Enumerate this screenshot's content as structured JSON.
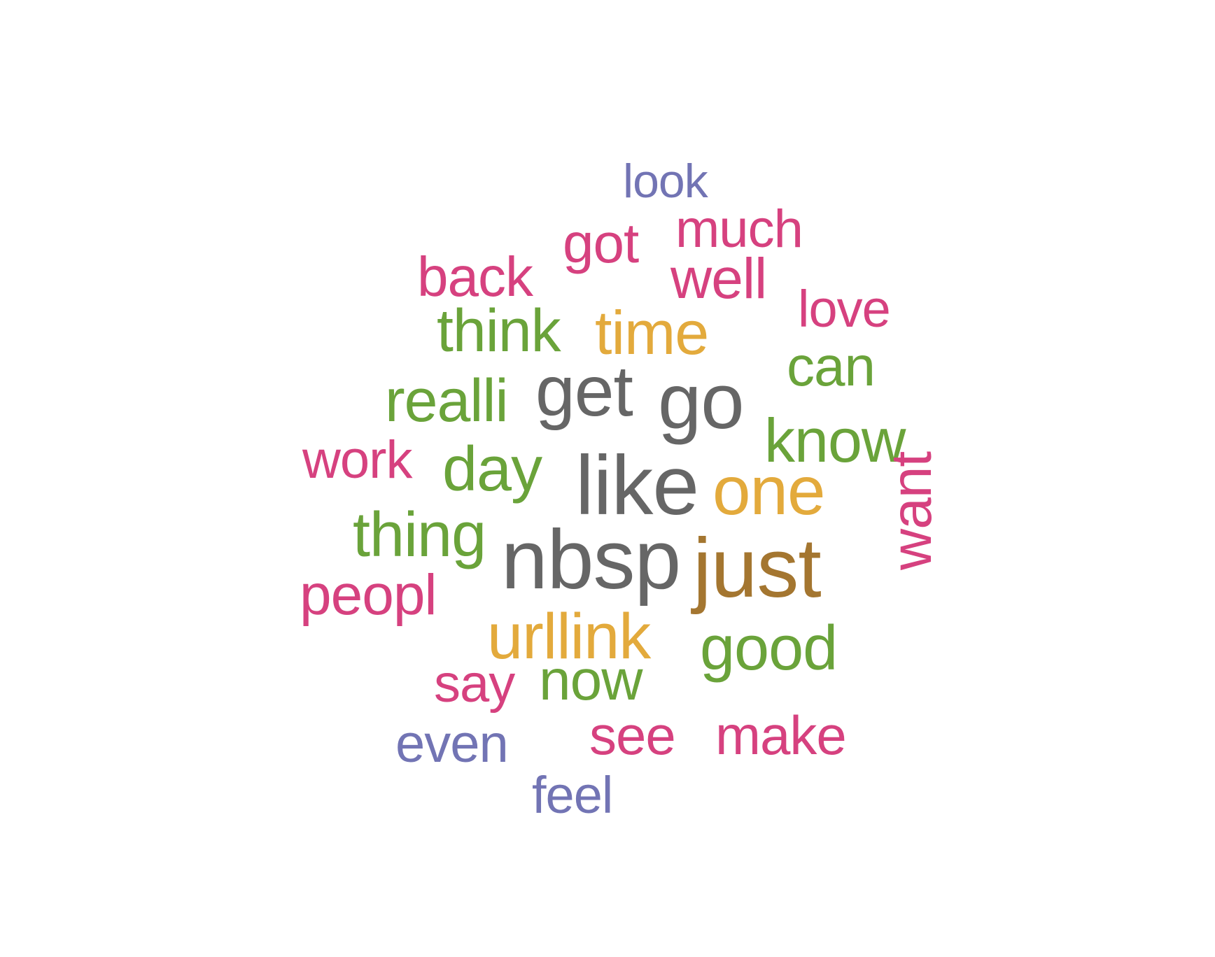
{
  "colors": {
    "gray": "#666666",
    "pink": "#d6417f",
    "green": "#6aa33a",
    "gold": "#e3aa3c",
    "brown": "#a47630",
    "slate": "#7274b4"
  },
  "words": [
    {
      "id": "look",
      "text": "look",
      "color": "slate"
    },
    {
      "id": "much",
      "text": "much",
      "color": "pink"
    },
    {
      "id": "got",
      "text": "got",
      "color": "pink"
    },
    {
      "id": "back",
      "text": "back",
      "color": "pink"
    },
    {
      "id": "well",
      "text": "well",
      "color": "pink"
    },
    {
      "id": "love",
      "text": "love",
      "color": "pink"
    },
    {
      "id": "think",
      "text": "think",
      "color": "green"
    },
    {
      "id": "time",
      "text": "time",
      "color": "gold"
    },
    {
      "id": "can",
      "text": "can",
      "color": "green"
    },
    {
      "id": "realli",
      "text": "realli",
      "color": "green"
    },
    {
      "id": "get",
      "text": "get",
      "color": "gray"
    },
    {
      "id": "go",
      "text": "go",
      "color": "gray"
    },
    {
      "id": "know",
      "text": "know",
      "color": "green"
    },
    {
      "id": "work",
      "text": "work",
      "color": "pink"
    },
    {
      "id": "day",
      "text": "day",
      "color": "green"
    },
    {
      "id": "like",
      "text": "like",
      "color": "gray"
    },
    {
      "id": "one",
      "text": "one",
      "color": "gold"
    },
    {
      "id": "thing",
      "text": "thing",
      "color": "green"
    },
    {
      "id": "nbsp",
      "text": "nbsp",
      "color": "gray"
    },
    {
      "id": "just",
      "text": "just",
      "color": "brown"
    },
    {
      "id": "want",
      "text": "want",
      "color": "pink"
    },
    {
      "id": "peopl",
      "text": "peopl",
      "color": "pink"
    },
    {
      "id": "urllink",
      "text": "urllink",
      "color": "gold"
    },
    {
      "id": "good",
      "text": "good",
      "color": "green"
    },
    {
      "id": "say",
      "text": "say",
      "color": "pink"
    },
    {
      "id": "now",
      "text": "now",
      "color": "green"
    },
    {
      "id": "see",
      "text": "see",
      "color": "pink"
    },
    {
      "id": "make",
      "text": "make",
      "color": "pink"
    },
    {
      "id": "even",
      "text": "even",
      "color": "slate"
    },
    {
      "id": "feel",
      "text": "feel",
      "color": "slate"
    }
  ]
}
